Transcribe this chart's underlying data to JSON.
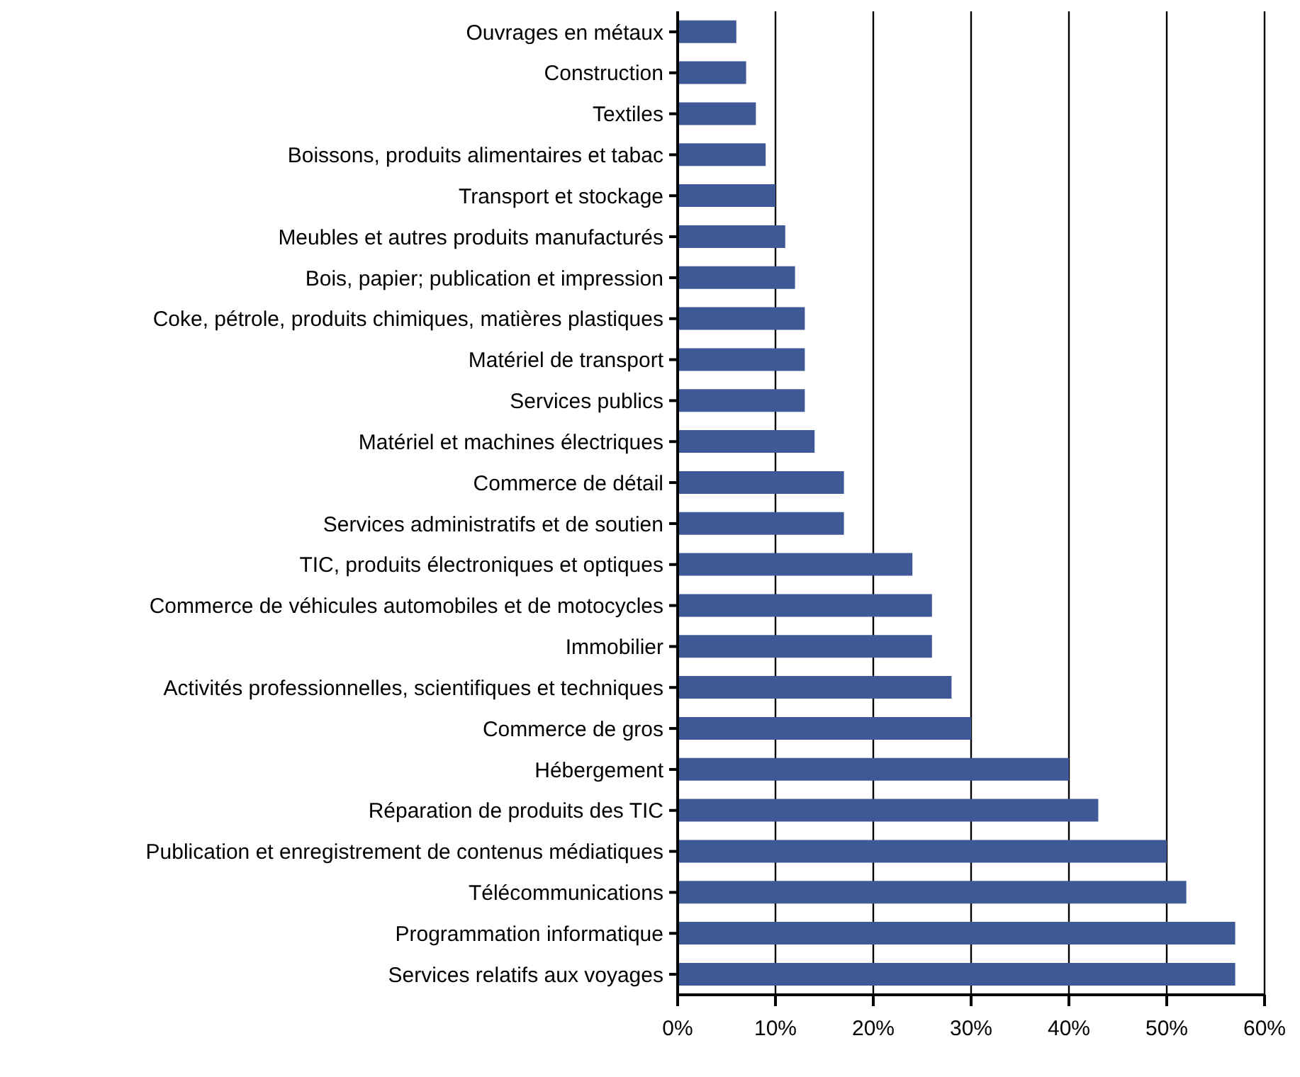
{
  "chart_data": {
    "type": "bar",
    "orientation": "horizontal",
    "categories": [
      "Ouvrages en métaux",
      "Construction",
      "Textiles",
      "Boissons, produits alimentaires et tabac",
      "Transport et stockage",
      "Meubles et autres produits manufacturés",
      "Bois, papier; publication et impression",
      "Coke, pétrole, produits chimiques, matières plastiques",
      "Matériel de transport",
      "Services publics",
      "Matériel et machines électriques",
      "Commerce de détail",
      "Services administratifs et de soutien",
      "TIC, produits électroniques et optiques",
      "Commerce de véhicules automobiles et de motocycles",
      "Immobilier",
      "Activités professionnelles, scientifiques et techniques",
      "Commerce de gros",
      "Hébergement",
      "Réparation de produits des TIC",
      "Publication et enregistrement de contenus médiatiques",
      "Télécommunications",
      "Programmation informatique",
      "Services relatifs aux voyages"
    ],
    "values": [
      6,
      7,
      8,
      9,
      10,
      11,
      12,
      13,
      13,
      13,
      14,
      17,
      17,
      24,
      26,
      26,
      28,
      30,
      40,
      43,
      50,
      52,
      57,
      57
    ],
    "color": "#3f5896",
    "xlim": [
      0,
      60
    ],
    "xticks": [
      {
        "value": 0,
        "label": "0%"
      },
      {
        "value": 10,
        "label": "10%"
      },
      {
        "value": 20,
        "label": "20%"
      },
      {
        "value": 30,
        "label": "30%"
      },
      {
        "value": 40,
        "label": "40%"
      },
      {
        "value": 50,
        "label": "50%"
      },
      {
        "value": 60,
        "label": "60%"
      }
    ],
    "grid": "x"
  }
}
